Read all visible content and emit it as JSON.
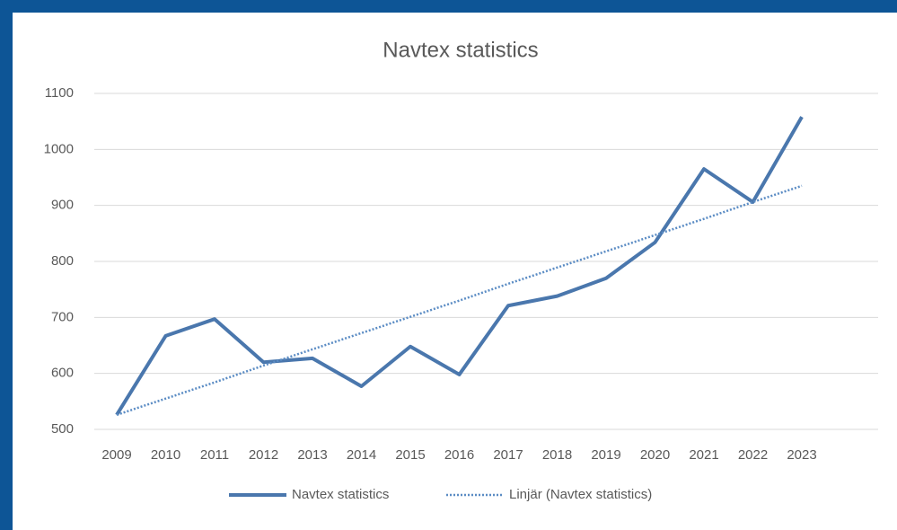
{
  "chart_data": {
    "type": "line",
    "title": "Navtex statistics",
    "categories": [
      "2009",
      "2010",
      "2011",
      "2012",
      "2013",
      "2014",
      "2015",
      "2016",
      "2017",
      "2018",
      "2019",
      "2020",
      "2021",
      "2022",
      "2023"
    ],
    "series": [
      {
        "name": "Navtex statistics",
        "color": "#4a77ad",
        "style": "solid",
        "values": [
          526,
          667,
          697,
          620,
          627,
          577,
          648,
          598,
          721,
          738,
          770,
          834,
          965,
          906,
          1058
        ]
      },
      {
        "name": "Linjär (Navtex statistics)",
        "color": "#5b8cc4",
        "style": "dotted",
        "values": [
          526,
          555,
          584,
          614,
          643,
          672,
          701,
          730,
          760,
          789,
          818,
          847,
          876,
          906,
          935
        ]
      }
    ],
    "ylim": [
      500,
      1100
    ],
    "yticks": [
      500,
      600,
      700,
      800,
      900,
      1000,
      1100
    ],
    "grid": true,
    "legend": "bottom"
  }
}
